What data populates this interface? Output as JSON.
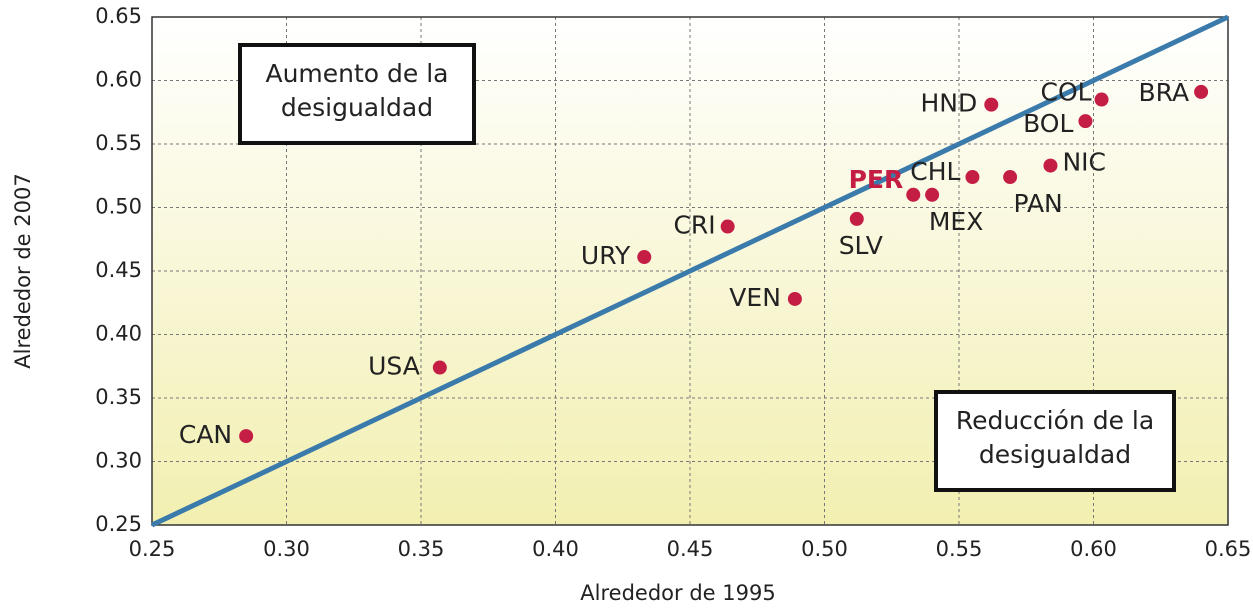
{
  "chart_data": {
    "type": "scatter",
    "xlabel": "Alrededor de 1995",
    "ylabel": "Alrededor de 2007",
    "xlim": [
      0.25,
      0.65
    ],
    "ylim": [
      0.25,
      0.65
    ],
    "xticks": [
      {
        "value": 0.25,
        "label": "0.25"
      },
      {
        "value": 0.3,
        "label": "0.30"
      },
      {
        "value": 0.35,
        "label": "0.35"
      },
      {
        "value": 0.4,
        "label": "0.40"
      },
      {
        "value": 0.45,
        "label": "0.45"
      },
      {
        "value": 0.5,
        "label": "0.50"
      },
      {
        "value": 0.55,
        "label": "0.55"
      },
      {
        "value": 0.6,
        "label": "0.60"
      },
      {
        "value": 0.65,
        "label": "0.65"
      }
    ],
    "yticks": [
      {
        "value": 0.25,
        "label": "0.25"
      },
      {
        "value": 0.3,
        "label": "0.30"
      },
      {
        "value": 0.35,
        "label": "0.35"
      },
      {
        "value": 0.4,
        "label": "0.40"
      },
      {
        "value": 0.45,
        "label": "0.45"
      },
      {
        "value": 0.5,
        "label": "0.50"
      },
      {
        "value": 0.55,
        "label": "0.55"
      },
      {
        "value": 0.6,
        "label": "0.60"
      },
      {
        "value": 0.65,
        "label": "0.65"
      }
    ],
    "grid": true,
    "color": "#c41e45",
    "line_color": "#3b7bab",
    "points": [
      {
        "label": "CAN",
        "x": 0.285,
        "y": 0.32
      },
      {
        "label": "USA",
        "x": 0.357,
        "y": 0.374
      },
      {
        "label": "URY",
        "x": 0.433,
        "y": 0.461
      },
      {
        "label": "CRI",
        "x": 0.464,
        "y": 0.485
      },
      {
        "label": "VEN",
        "x": 0.489,
        "y": 0.428
      },
      {
        "label": "SLV",
        "x": 0.512,
        "y": 0.491
      },
      {
        "label": "PER",
        "x": 0.533,
        "y": 0.51,
        "label_color": "#c41e45"
      },
      {
        "label": "MEX",
        "x": 0.54,
        "y": 0.51
      },
      {
        "label": "CHL",
        "x": 0.555,
        "y": 0.524
      },
      {
        "label": "PAN",
        "x": 0.569,
        "y": 0.524
      },
      {
        "label": "HND",
        "x": 0.562,
        "y": 0.581
      },
      {
        "label": "NIC",
        "x": 0.584,
        "y": 0.533
      },
      {
        "label": "BOL",
        "x": 0.597,
        "y": 0.568
      },
      {
        "label": "COL",
        "x": 0.603,
        "y": 0.585
      },
      {
        "label": "BRA",
        "x": 0.64,
        "y": 0.591
      }
    ],
    "annotations": [
      [
        "Aumento de la",
        "desigualdad"
      ],
      [
        "Reducción de la",
        "desigualdad"
      ]
    ]
  }
}
